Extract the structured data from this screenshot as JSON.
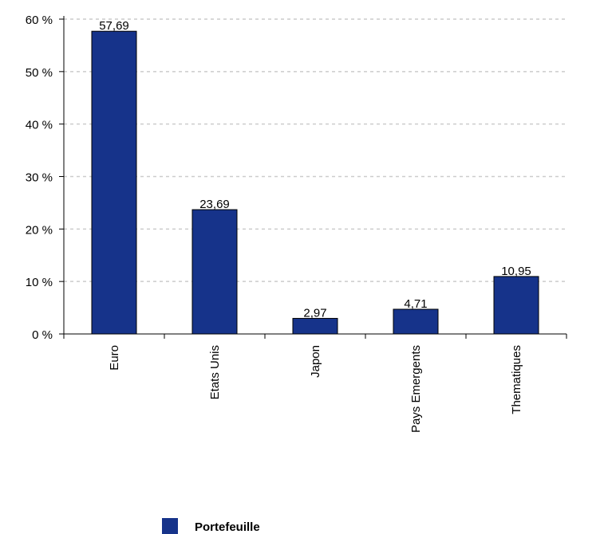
{
  "chart_data": {
    "type": "bar",
    "categories": [
      "Euro",
      "Etats Unis",
      "Japon",
      "Pays Emergents",
      "Thematiques"
    ],
    "series": [
      {
        "name": "Portefeuille",
        "values": [
          57.69,
          23.69,
          2.97,
          4.71,
          10.95
        ]
      }
    ],
    "value_labels": [
      "57,69",
      "23,69",
      "2,97",
      "4,71",
      "10,95"
    ],
    "ylim": [
      0,
      60
    ],
    "yticks": [
      0,
      10,
      20,
      30,
      40,
      50,
      60
    ],
    "ytick_labels": [
      "0 %",
      "10 %",
      "20 %",
      "30 %",
      "40 %",
      "50 %",
      "60 %"
    ],
    "grid": true,
    "legend_position": "bottom",
    "bar_color": "#16338a"
  }
}
